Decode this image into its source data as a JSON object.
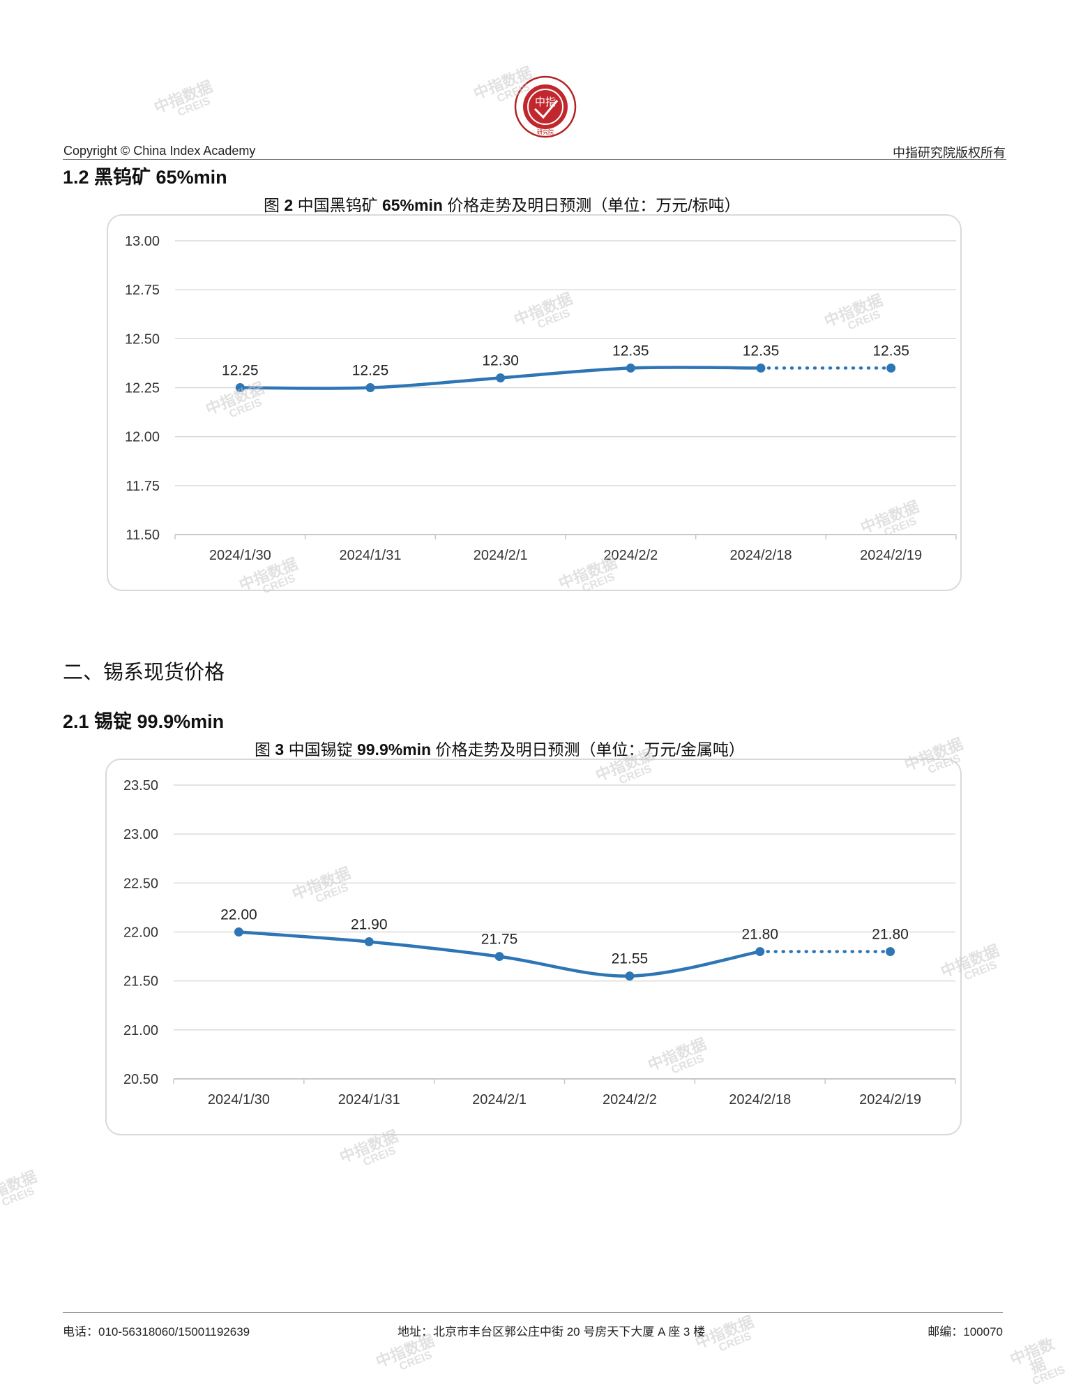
{
  "header": {
    "logo_text_center": "中指",
    "logo_ring_text": "CHINA INDEX ACADEMY",
    "logo_bottom_text": "研究院",
    "copyright": "Copyright © China Index Academy",
    "rights": "中指研究院版权所有"
  },
  "sections": {
    "s12": "1.2 黑钨矿 65%min",
    "s2": "二、锡系现货价格",
    "s21": "2.1 锡锭 99.9%min"
  },
  "watermark": {
    "line1": "中指数据",
    "line2": "CREIS"
  },
  "chart_data": [
    {
      "type": "line",
      "title_prefix": "图",
      "title_num": "2",
      "title_mid": "中国黑钨矿",
      "title_grade": "65%min",
      "title_rest": "价格走势及明日预测（单位：万元/标吨）",
      "categories": [
        "2024/1/30",
        "2024/1/31",
        "2024/2/1",
        "2024/2/2",
        "2024/2/18",
        "2024/2/19"
      ],
      "values": [
        12.25,
        12.25,
        12.3,
        12.35,
        12.35,
        12.35
      ],
      "value_labels": [
        "12.25",
        "12.25",
        "12.30",
        "12.35",
        "12.35",
        "12.35"
      ],
      "forecast_from_index": 4,
      "ylim": [
        11.5,
        13.0
      ],
      "yticks": [
        "11.50",
        "11.75",
        "12.00",
        "12.25",
        "12.50",
        "12.75",
        "13.00"
      ],
      "grid": true,
      "color": "#2e75b6"
    },
    {
      "type": "line",
      "title_prefix": "图",
      "title_num": "3",
      "title_mid": "中国锡锭",
      "title_grade": "99.9%min",
      "title_rest": "价格走势及明日预测（单位：万元/金属吨）",
      "categories": [
        "2024/1/30",
        "2024/1/31",
        "2024/2/1",
        "2024/2/2",
        "2024/2/18",
        "2024/2/19"
      ],
      "values": [
        22.0,
        21.9,
        21.75,
        21.55,
        21.8,
        21.8
      ],
      "value_labels": [
        "22.00",
        "21.90",
        "21.75",
        "21.55",
        "21.80",
        "21.80"
      ],
      "forecast_from_index": 4,
      "ylim": [
        20.5,
        23.5
      ],
      "yticks": [
        "20.50",
        "21.00",
        "21.50",
        "22.00",
        "22.50",
        "23.00",
        "23.50"
      ],
      "grid": true,
      "color": "#2e75b6"
    }
  ],
  "footer": {
    "phone": "电话：010-56318060/15001192639",
    "address": "地址：北京市丰台区郭公庄中街 20 号房天下大厦 A 座 3 楼",
    "postcode": "邮编：100070"
  }
}
